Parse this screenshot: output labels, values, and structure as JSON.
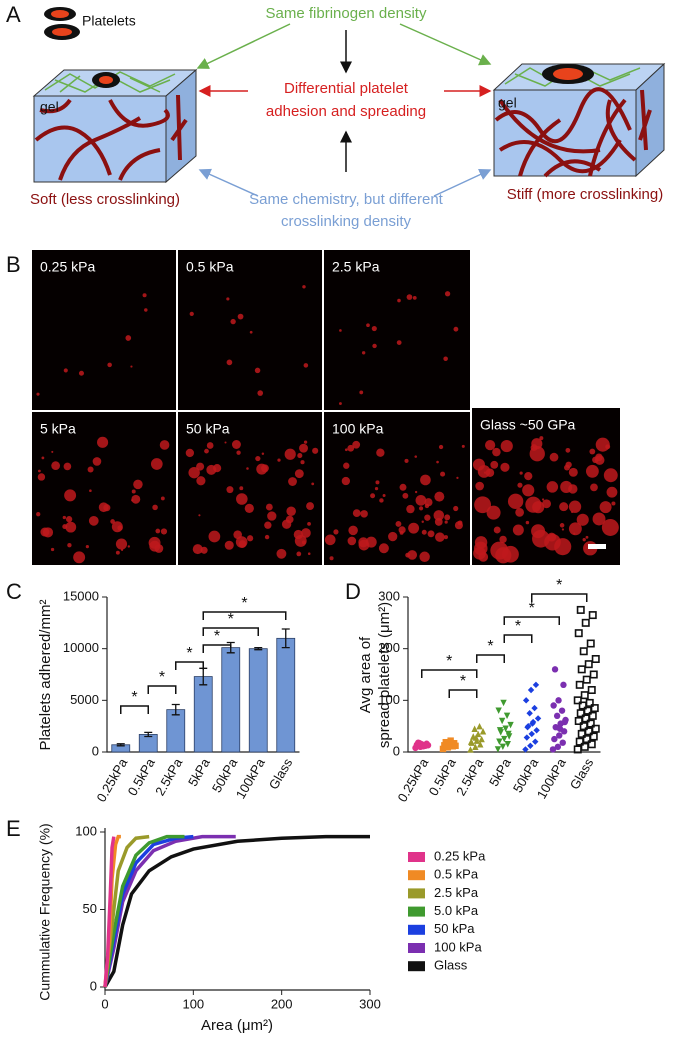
{
  "panel_labels": [
    "A",
    "B",
    "C",
    "D",
    "E"
  ],
  "diagram": {
    "legend_label": "Platelets",
    "gel_labels": [
      "gel",
      "gel"
    ],
    "top": "Same fibrinogen density",
    "center": [
      "Differential platelet",
      "adhesion and spreading"
    ],
    "bottom": [
      "Same chemistry, but different",
      "crosslinking density"
    ],
    "soft": "Soft (less crosslinking)",
    "stiff": "Stiff (more crosslinking)"
  },
  "micrographs": {
    "labels": [
      "0.25 kPa",
      "0.5 kPa",
      "2.5 kPa",
      "5 kPa",
      "50 kPa",
      "100 kPa",
      "Glass ~50 GPa"
    ]
  },
  "chart_data": [
    {
      "type": "bar",
      "ylabel": "Platelets adhered/mm²",
      "categories": [
        "0.25kPa",
        "0.5kPa",
        "2.5kPa",
        "5kPa",
        "50kPa",
        "100kPa",
        "Glass"
      ],
      "values": [
        700,
        1700,
        4100,
        7300,
        10100,
        10000,
        11000
      ],
      "errors": [
        100,
        200,
        500,
        800,
        500,
        100,
        900
      ],
      "color": "#6f95d3",
      "ylim": [
        0,
        15000
      ],
      "yticks": [
        0,
        5000,
        10000,
        15000
      ],
      "annotations": [
        "*",
        "*",
        "*",
        "*",
        "*",
        "*"
      ]
    },
    {
      "type": "strip",
      "ylabel": [
        "Avg area of",
        "spread platelets (μm²)"
      ],
      "categories": [
        "0.25kPa",
        "0.5kPa",
        "2.5kPa",
        "5kPa",
        "50kPa",
        "100kPa",
        "Glass"
      ],
      "values": [
        [
          8,
          10,
          12,
          14,
          15,
          16,
          18,
          11,
          13,
          17
        ],
        [
          6,
          9,
          11,
          13,
          15,
          17,
          19,
          22,
          12,
          14
        ],
        [
          5,
          10,
          15,
          18,
          22,
          25,
          30,
          35,
          40,
          45,
          50,
          20,
          28
        ],
        [
          5,
          10,
          15,
          20,
          25,
          30,
          38,
          45,
          52,
          60,
          70,
          80,
          95,
          35,
          42
        ],
        [
          5,
          12,
          20,
          28,
          35,
          42,
          50,
          58,
          65,
          75,
          85,
          100,
          120,
          130,
          48,
          55
        ],
        [
          5,
          10,
          18,
          25,
          32,
          40,
          48,
          55,
          62,
          70,
          80,
          90,
          100,
          130,
          160,
          45,
          58
        ],
        [
          5,
          10,
          15,
          20,
          25,
          30,
          35,
          40,
          45,
          50,
          55,
          60,
          65,
          70,
          75,
          80,
          85,
          90,
          95,
          100,
          110,
          120,
          130,
          140,
          150,
          160,
          170,
          180,
          195,
          210,
          230,
          250,
          265,
          275
        ]
      ],
      "colors": [
        "#e0338a",
        "#f08a24",
        "#9a9a2a",
        "#3f9a2f",
        "#1b3fe0",
        "#7b2fb0",
        "#111111"
      ],
      "markers": [
        "circle",
        "square",
        "triangle",
        "triangle-down",
        "diamond",
        "circle",
        "square-open"
      ],
      "ylim": [
        0,
        300
      ],
      "yticks": [
        0,
        100,
        200,
        300
      ],
      "annotations": [
        "*",
        "*",
        "*",
        "*",
        "*",
        "*"
      ]
    },
    {
      "type": "line",
      "ylabel": "Cummulative Frequency (%)",
      "xlabel": "Area (μm²)",
      "xlim": [
        0,
        300
      ],
      "xticks": [
        0,
        100,
        200,
        300
      ],
      "ylim": [
        0,
        100
      ],
      "yticks": [
        0,
        50,
        100
      ],
      "series": [
        {
          "name": "0.25 kPa",
          "color": "#e0338a",
          "x": [
            0,
            3,
            6,
            8,
            10
          ],
          "values": [
            0,
            20,
            60,
            90,
            97
          ]
        },
        {
          "name": "0.5 kPa",
          "color": "#f08a24",
          "x": [
            0,
            5,
            8,
            12,
            15,
            18
          ],
          "values": [
            0,
            30,
            70,
            92,
            97,
            97
          ]
        },
        {
          "name": "2.5 kPa",
          "color": "#9a9a2a",
          "x": [
            0,
            8,
            15,
            25,
            35,
            50
          ],
          "values": [
            0,
            40,
            75,
            90,
            96,
            97
          ]
        },
        {
          "name": "5.0 kPa",
          "color": "#3f9a2f",
          "x": [
            0,
            10,
            20,
            35,
            50,
            70,
            90
          ],
          "values": [
            0,
            35,
            65,
            85,
            93,
            97,
            97
          ]
        },
        {
          "name": "50 kPa",
          "color": "#1b3fe0",
          "x": [
            0,
            10,
            20,
            35,
            55,
            80,
            100
          ],
          "values": [
            0,
            30,
            60,
            80,
            92,
            96,
            97
          ]
        },
        {
          "name": "100 kPa",
          "color": "#7b2fb0",
          "x": [
            0,
            10,
            20,
            35,
            55,
            80,
            110,
            148
          ],
          "values": [
            0,
            25,
            55,
            75,
            88,
            94,
            97,
            97
          ]
        },
        {
          "name": "Glass",
          "color": "#111111",
          "x": [
            0,
            10,
            20,
            30,
            50,
            75,
            100,
            150,
            200,
            250,
            300
          ],
          "values": [
            0,
            10,
            40,
            60,
            75,
            84,
            89,
            94,
            96,
            97,
            97
          ]
        }
      ]
    }
  ]
}
